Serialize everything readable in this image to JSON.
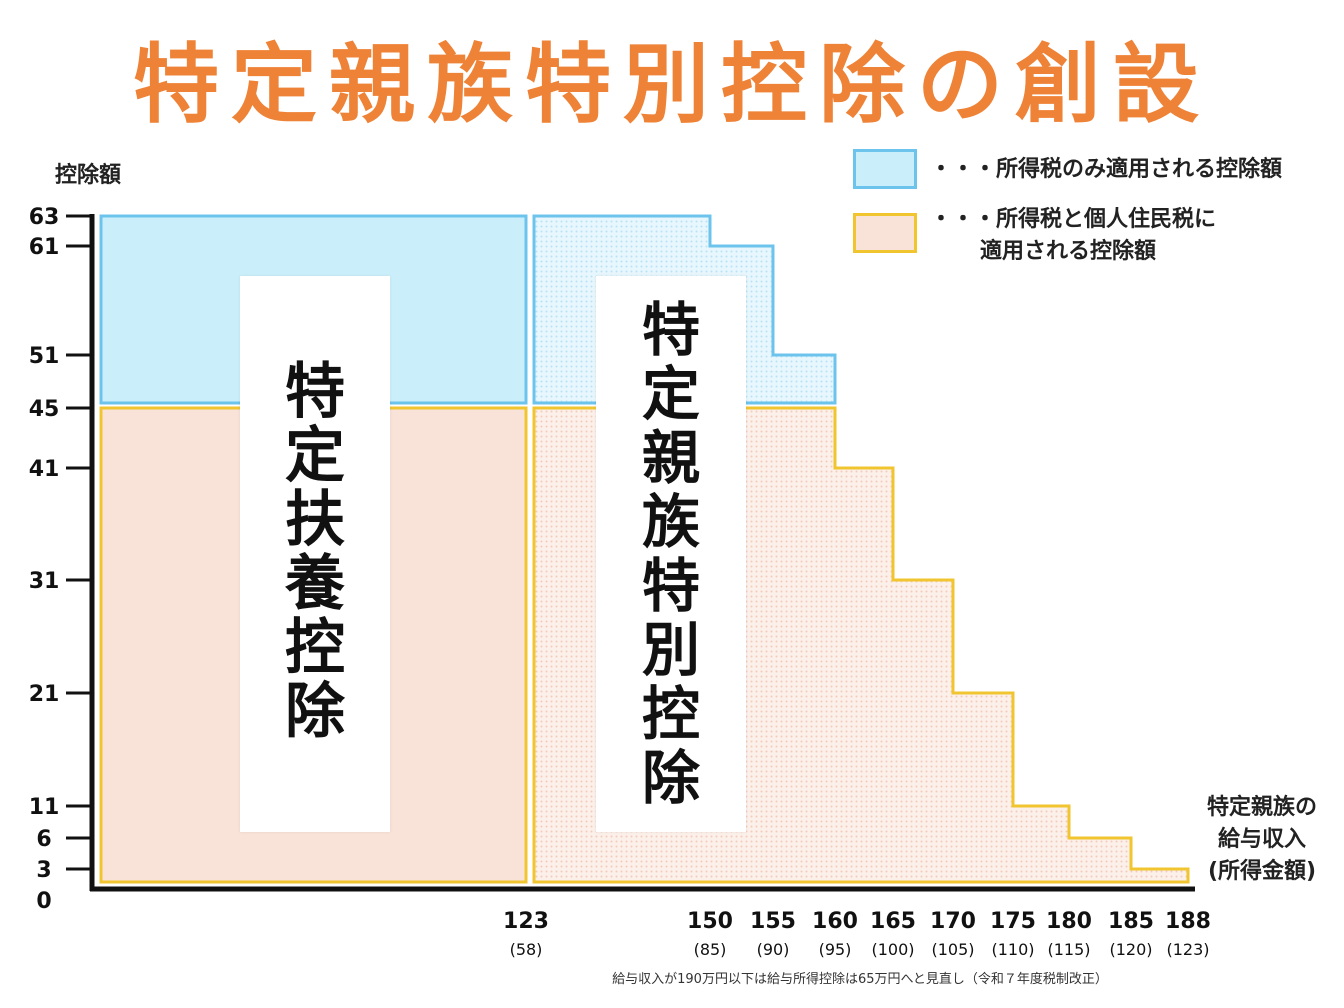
{
  "title": "特定親族特別控除の創設",
  "legend": [
    {
      "swatch": "blue",
      "text": "・・・所得税のみ適用される控除額"
    },
    {
      "swatch": "orange",
      "text": "・・・所得税と個人住民税に",
      "text2": "適用される控除額"
    }
  ],
  "footnote": "給与収入が190万円以下は給与所得控除は65万円へと見直し（令和７年度税制改正）",
  "labels": {
    "fuyo": "特定扶養控除",
    "tokubetsu": "特定親族特別控除"
  },
  "colors": {
    "blue_fill": "#cbeffa",
    "blue_line": "#6cc3ec",
    "orange_fill": "#f9e2d8",
    "orange_line": "#f1c530",
    "title": "#ee8236",
    "axis": "#111111"
  },
  "chart_data": {
    "type": "area",
    "ylabel": "控除額",
    "xlabel_lines": [
      "特定親族の",
      "給与収入",
      "(所得金額)"
    ],
    "y_ticks": [
      0,
      3,
      6,
      11,
      21,
      31,
      41,
      45,
      51,
      61,
      63
    ],
    "x_ticks": [
      {
        "value": 123,
        "label": "123",
        "sub": "(58)"
      },
      {
        "value": 150,
        "label": "150",
        "sub": "(85)"
      },
      {
        "value": 155,
        "label": "155",
        "sub": "(90)"
      },
      {
        "value": 160,
        "label": "160",
        "sub": "(95)"
      },
      {
        "value": 165,
        "label": "165",
        "sub": "(100)"
      },
      {
        "value": 170,
        "label": "170",
        "sub": "(105)"
      },
      {
        "value": 175,
        "label": "175",
        "sub": "(110)"
      },
      {
        "value": 180,
        "label": "180",
        "sub": "(115)"
      },
      {
        "value": 185,
        "label": "185",
        "sub": "(120)"
      },
      {
        "value": 188,
        "label": "188",
        "sub": "(123)"
      }
    ],
    "ylim": [
      0,
      63
    ],
    "series": [
      {
        "name": "特定扶養控除",
        "steps": [
          {
            "x_end": 123,
            "income_tax": 63,
            "resident_tax": 45
          }
        ]
      },
      {
        "name": "特定親族特別控除",
        "steps": [
          {
            "x_end": 150,
            "income_tax": 63,
            "resident_tax": 45
          },
          {
            "x_end": 155,
            "income_tax": 61,
            "resident_tax": 45
          },
          {
            "x_end": 160,
            "income_tax": 51,
            "resident_tax": 45
          },
          {
            "x_end": 165,
            "income_tax": 41,
            "resident_tax": 41
          },
          {
            "x_end": 170,
            "income_tax": 31,
            "resident_tax": 31
          },
          {
            "x_end": 175,
            "income_tax": 21,
            "resident_tax": 21
          },
          {
            "x_end": 180,
            "income_tax": 11,
            "resident_tax": 11
          },
          {
            "x_end": 185,
            "income_tax": 6,
            "resident_tax": 6
          },
          {
            "x_end": 188,
            "income_tax": 3,
            "resident_tax": 3
          }
        ]
      }
    ]
  }
}
